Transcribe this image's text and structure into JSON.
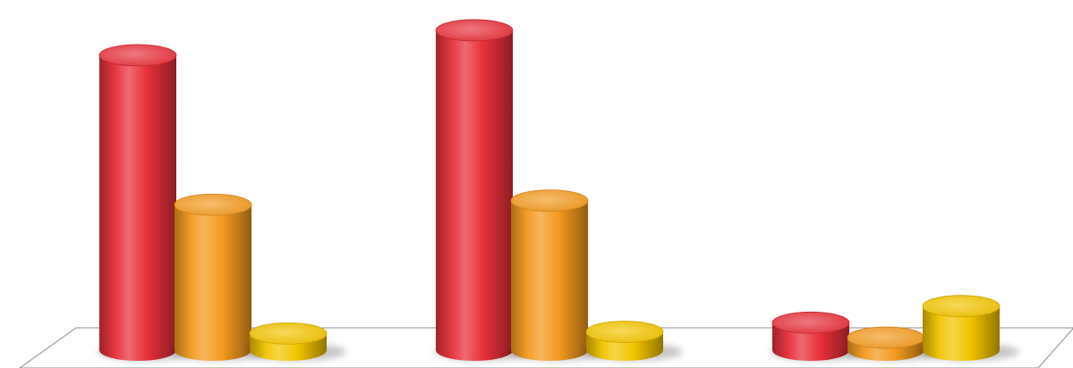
{
  "chart_data": {
    "type": "bar",
    "style": "3d-cylinder",
    "categories": [
      "",
      "",
      ""
    ],
    "series": [
      {
        "color": "#e8303a",
        "values": [
          355,
          385,
          33
        ]
      },
      {
        "color": "#f39a1e",
        "values": [
          175,
          180,
          15
        ]
      },
      {
        "color": "#f2c400",
        "values": [
          20,
          22,
          53
        ]
      }
    ],
    "ylim": [
      0,
      400
    ],
    "grid": false,
    "legend": "none",
    "title": "",
    "xlabel": "",
    "ylabel": ""
  }
}
